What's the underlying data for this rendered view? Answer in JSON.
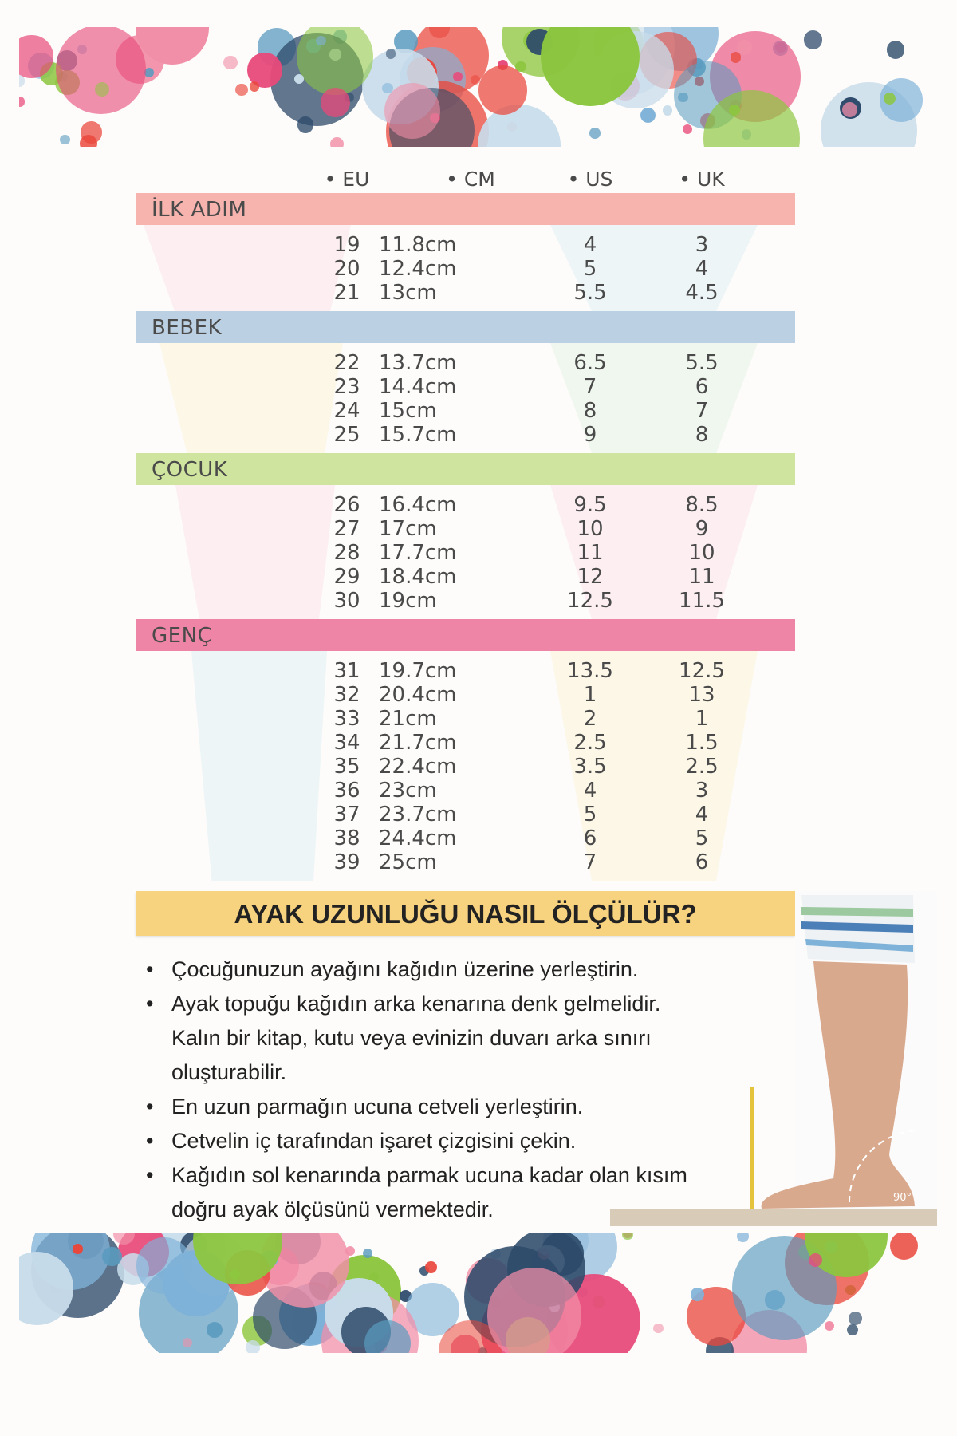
{
  "colors": {
    "bubble_palette": [
      "#e84a7a",
      "#8cc63f",
      "#7fb2d8",
      "#2d4a6a",
      "#e9473c",
      "#c8dcea",
      "#f28fa8",
      "#5a9bbf"
    ],
    "band_ilk": "#f7b4ae",
    "band_bebek": "#bcd0e3",
    "band_cocuk": "#cfe49f",
    "band_genc": "#ee84a6",
    "howto_bg": "#f7d27f"
  },
  "table": {
    "columns": [
      "• EU",
      "• CM",
      "• US",
      "• UK"
    ],
    "sections": [
      {
        "name": "İLK ADIM",
        "color": "#f7b4ae",
        "rows": [
          [
            "19",
            "11.8cm",
            "4",
            "3"
          ],
          [
            "20",
            "12.4cm",
            "5",
            "4"
          ],
          [
            "21",
            "13cm",
            "5.5",
            "4.5"
          ]
        ]
      },
      {
        "name": "BEBEK",
        "color": "#bcd0e3",
        "rows": [
          [
            "22",
            "13.7cm",
            "6.5",
            "5.5"
          ],
          [
            "23",
            "14.4cm",
            "7",
            "6"
          ],
          [
            "24",
            "15cm",
            "8",
            "7"
          ],
          [
            "25",
            "15.7cm",
            "9",
            "8"
          ]
        ]
      },
      {
        "name": "ÇOCUK",
        "color": "#cfe49f",
        "rows": [
          [
            "26",
            "16.4cm",
            "9.5",
            "8.5"
          ],
          [
            "27",
            "17cm",
            "10",
            "9"
          ],
          [
            "28",
            "17.7cm",
            "11",
            "10"
          ],
          [
            "29",
            "18.4cm",
            "12",
            "11"
          ],
          [
            "30",
            "19cm",
            "12.5",
            "11.5"
          ]
        ]
      },
      {
        "name": "GENÇ",
        "color": "#ee84a6",
        "rows": [
          [
            "31",
            "19.7cm",
            "13.5",
            "12.5"
          ],
          [
            "32",
            "20.4cm",
            "1",
            "13"
          ],
          [
            "33",
            "21cm",
            "2",
            "1"
          ],
          [
            "34",
            "21.7cm",
            "2.5",
            "1.5"
          ],
          [
            "35",
            "22.4cm",
            "3.5",
            "2.5"
          ],
          [
            "36",
            "23cm",
            "4",
            "3"
          ],
          [
            "37",
            "23.7cm",
            "5",
            "4"
          ],
          [
            "38",
            "24.4cm",
            "6",
            "5"
          ],
          [
            "39",
            "25cm",
            "7",
            "6"
          ]
        ]
      }
    ]
  },
  "howto": {
    "title": "AYAK UZUNLUĞU NASIL ÖLÇÜLÜR?",
    "steps": [
      [
        "Çocuğunuzun ayağını kağıdın üzerine yerleştirin."
      ],
      [
        "Ayak topuğu kağıdın arka kenarına denk gelmelidir.",
        "Kalın bir kitap, kutu veya evinizin duvarı arka sınırı",
        "oluşturabilir."
      ],
      [
        "En uzun parmağın ucuna cetveli yerleştirin."
      ],
      [
        "Cetvelin iç tarafından işaret çizgisini çekin."
      ],
      [
        "Kağıdın sol kenarında parmak ucuna kadar olan kısım",
        "doğru ayak ölçüsünü vermektedir."
      ]
    ],
    "angle_label": "90°"
  }
}
